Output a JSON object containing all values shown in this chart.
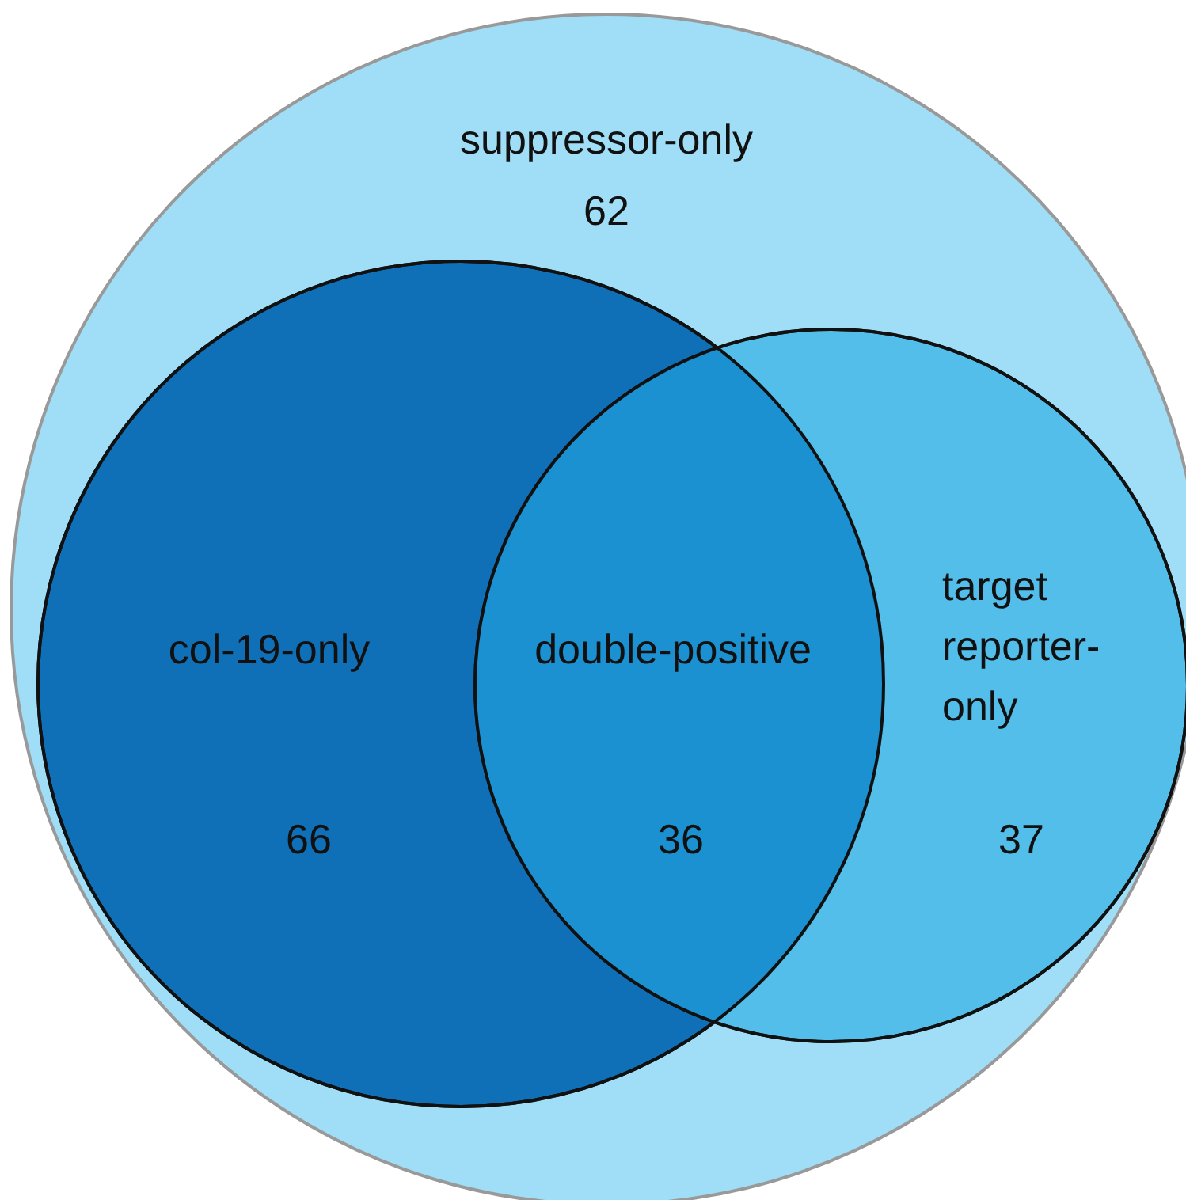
{
  "chart_data": {
    "type": "other",
    "categories": [
      "suppressor-only",
      "col-19-only",
      "double-positive",
      "target\nreporter-\nonly"
    ],
    "values": [
      62,
      66,
      36,
      37
    ],
    "colors": [
      "#9fdef6",
      "#0f70b8",
      "#1c91d1",
      "#53bee9"
    ],
    "data_labels": true
  }
}
